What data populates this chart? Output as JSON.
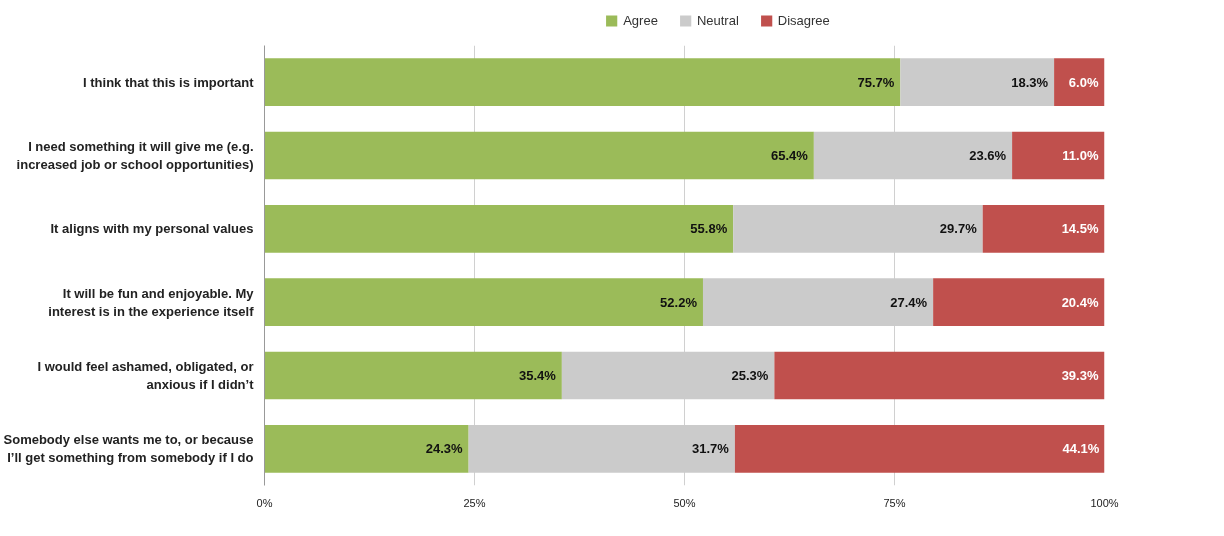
{
  "chart_data": {
    "type": "bar",
    "orientation": "horizontal",
    "stacked": true,
    "categories": [
      "I think that this is important",
      "I need something it will give me (e.g. increased job or school opportunities)",
      "It aligns with my personal values",
      "It will be fun and enjoyable. My interest is in the experience itself",
      "I would feel ashamed, obligated, or anxious if I didn’t",
      "Somebody else wants me to, or because I’ll get something from somebody if I do"
    ],
    "series": [
      {
        "name": "Agree",
        "color": "#9bbb59",
        "values": [
          75.7,
          65.4,
          55.8,
          52.2,
          35.4,
          24.3
        ],
        "value_labels": [
          "75.7%",
          "65.4%",
          "55.8%",
          "52.2%",
          "35.4%",
          "24.3%"
        ]
      },
      {
        "name": "Neutral",
        "color": "#cbcbcb",
        "values": [
          18.3,
          23.6,
          29.7,
          27.4,
          25.3,
          31.7
        ],
        "value_labels": [
          "18.3%",
          "23.6%",
          "29.7%",
          "27.4%",
          "25.3%",
          "31.7%"
        ]
      },
      {
        "name": "Disagree",
        "color": "#c0504d",
        "values": [
          6.0,
          11.0,
          14.5,
          20.4,
          39.3,
          44.1
        ],
        "value_labels": [
          "6.0%",
          "11.0%",
          "14.5%",
          "20.4%",
          "39.3%",
          "44.1%"
        ]
      }
    ],
    "xlim": [
      0,
      100
    ],
    "xticks": [
      {
        "value": 0,
        "label": "0%"
      },
      {
        "value": 25,
        "label": "25%"
      },
      {
        "value": 50,
        "label": "50%"
      },
      {
        "value": 75,
        "label": "75%"
      },
      {
        "value": 100,
        "label": "100%"
      }
    ],
    "grid": "x",
    "legend": "top"
  }
}
